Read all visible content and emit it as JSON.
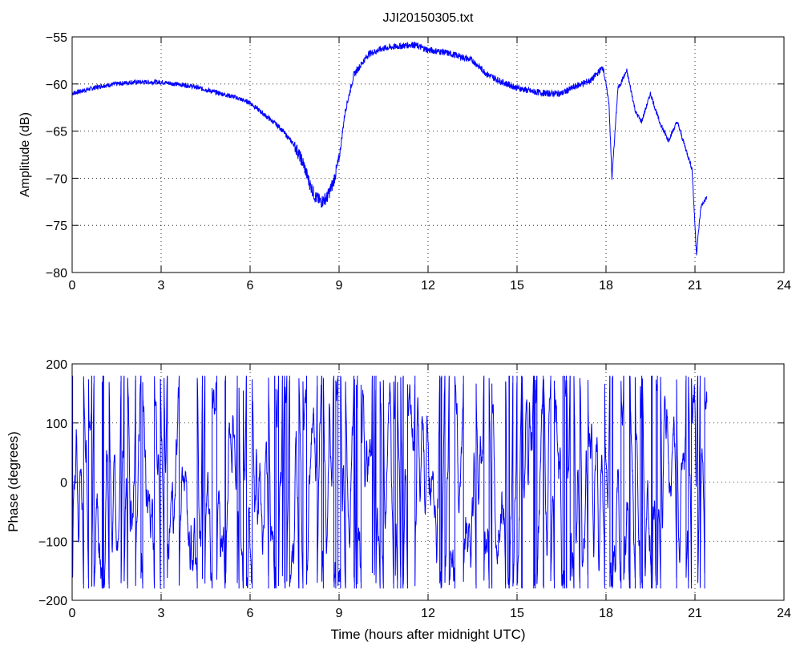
{
  "chart_data": [
    {
      "type": "line",
      "title": "JJI20150305.txt",
      "xlabel": "",
      "ylabel": "Amplitude (dB)",
      "xlim": [
        0,
        24
      ],
      "ylim": [
        -80,
        -55
      ],
      "grid": true,
      "line_color": "#0000ff",
      "xticks": [
        0,
        3,
        6,
        9,
        12,
        15,
        18,
        21,
        24
      ],
      "yticks": [
        -80,
        -75,
        -70,
        -65,
        -60,
        -55
      ],
      "xtick_labels": [
        "0",
        "3",
        "6",
        "9",
        "12",
        "15",
        "18",
        "21",
        "24"
      ],
      "ytick_labels": [
        "−80",
        "−75",
        "−70",
        "−65",
        "−60",
        "−55"
      ],
      "series": [
        {
          "x": [
            0,
            0.5,
            1,
            1.5,
            2,
            2.5,
            3,
            3.5,
            4,
            4.5,
            5,
            5.5,
            6,
            6.5,
            7,
            7.5,
            7.8,
            8,
            8.2,
            8.4,
            8.6,
            8.8,
            9,
            9.2,
            9.5,
            10,
            10.5,
            11,
            11.5,
            12,
            12.5,
            13,
            13.5,
            14,
            14.5,
            15,
            15.5,
            16,
            16.5,
            17,
            17.5,
            17.9,
            18.1,
            18.2,
            18.4,
            18.7,
            19,
            19.2,
            19.5,
            19.8,
            20.1,
            20.4,
            20.7,
            20.9,
            21.05,
            21.2,
            21.4
          ],
          "y": [
            -61,
            -60.6,
            -60.2,
            -60,
            -59.8,
            -59.8,
            -59.8,
            -60,
            -60.2,
            -60.6,
            -61,
            -61.4,
            -62,
            -63.3,
            -64.6,
            -66.5,
            -68.5,
            -70.5,
            -72,
            -72.5,
            -72,
            -70.5,
            -68,
            -63,
            -59,
            -56.8,
            -56.2,
            -56,
            -55.8,
            -56.4,
            -56.6,
            -57,
            -57.5,
            -59,
            -59.8,
            -60.4,
            -60.8,
            -61,
            -61,
            -60.2,
            -59.6,
            -58.2,
            -62,
            -70,
            -60.5,
            -58.6,
            -63,
            -64,
            -61,
            -64,
            -66,
            -64,
            -67,
            -69,
            -78,
            -73,
            -72
          ]
        }
      ]
    },
    {
      "type": "line",
      "title": "",
      "xlabel": "Time (hours after midnight UTC)",
      "ylabel": "Phase (degrees)",
      "xlim": [
        0,
        24
      ],
      "ylim": [
        -200,
        200
      ],
      "grid": true,
      "line_color": "#0000ff",
      "xticks": [
        0,
        3,
        6,
        9,
        12,
        15,
        18,
        21,
        24
      ],
      "yticks": [
        -200,
        -100,
        0,
        100,
        200
      ],
      "xtick_labels": [
        "0",
        "3",
        "6",
        "9",
        "12",
        "15",
        "18",
        "21",
        "24"
      ],
      "ytick_labels": [
        "−200",
        "−100",
        "0",
        "100",
        "200"
      ],
      "series": [
        {
          "x_range": [
            0,
            21.4
          ],
          "y_range": [
            -180,
            180
          ],
          "description_visible": ""
        }
      ]
    }
  ]
}
